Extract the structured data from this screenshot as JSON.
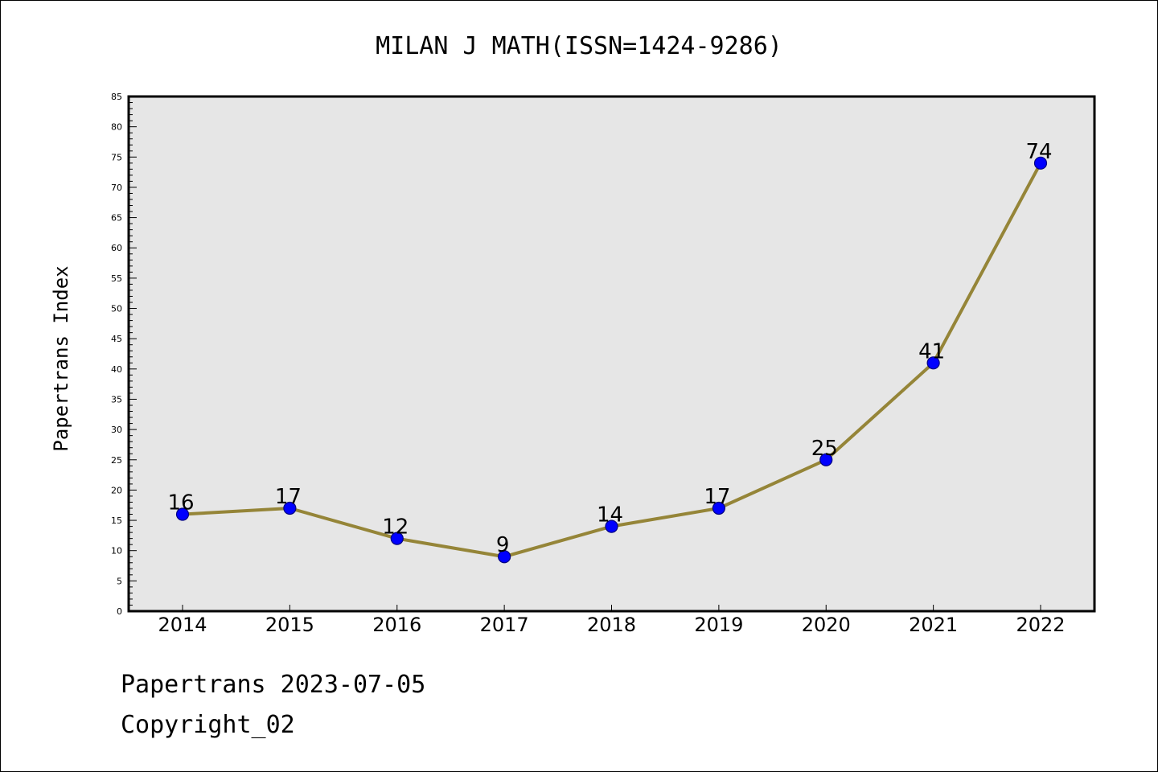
{
  "footer": {
    "line1": "Papertrans 2023-07-05",
    "line2": "Copyright_02"
  },
  "chart_data": {
    "type": "line",
    "title": "MILAN J MATH(ISSN=1424-9286)",
    "xlabel": "",
    "ylabel": "Papertrans Index",
    "categories": [
      "2014",
      "2015",
      "2016",
      "2017",
      "2018",
      "2019",
      "2020",
      "2021",
      "2022"
    ],
    "series": [
      {
        "values": [
          16,
          17,
          12,
          9,
          14,
          17,
          25,
          41,
          74
        ]
      }
    ],
    "ylim": [
      0,
      85
    ],
    "ytick_step": 5,
    "yminor_step": 1,
    "ytick_labels": [
      "0",
      "5",
      "10",
      "15",
      "20",
      "25",
      "30",
      "35",
      "40",
      "45",
      "50",
      "55",
      "60",
      "65",
      "70",
      "75",
      "80",
      "85"
    ],
    "grid": false,
    "colors": {
      "plot_background": "#e6e6e6",
      "line": "#958538",
      "marker_fill": "#0000ff",
      "marker_stroke": "#000080"
    }
  }
}
